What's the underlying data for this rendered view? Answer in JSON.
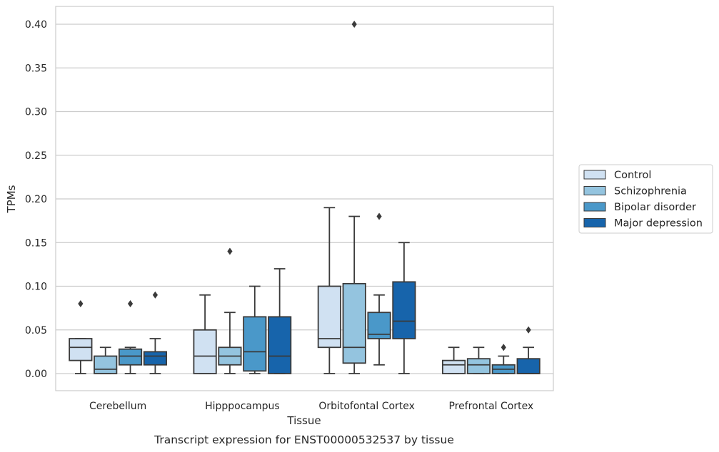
{
  "chart_data": {
    "type": "box",
    "caption": "Transcript expression for ENST00000532537 by tissue",
    "xlabel": "Tissue",
    "ylabel": "TPMs",
    "ylim": [
      -0.02,
      0.42
    ],
    "yticks": [
      "0.00",
      "0.05",
      "0.10",
      "0.15",
      "0.20",
      "0.25",
      "0.30",
      "0.35",
      "0.40"
    ],
    "grid": true,
    "legend_position": "right",
    "categories": [
      "Cerebellum",
      "Hipppocampus",
      "Orbitofontal Cortex",
      "Prefrontal Cortex"
    ],
    "series": [
      {
        "name": "Control",
        "color": "#d0e1f2",
        "boxes": [
          {
            "min": 0.0,
            "q1": 0.015,
            "median": 0.03,
            "q3": 0.04,
            "max": 0.04,
            "outliers": [
              0.08
            ]
          },
          {
            "min": 0.0,
            "q1": 0.0,
            "median": 0.02,
            "q3": 0.05,
            "max": 0.09,
            "outliers": []
          },
          {
            "min": 0.0,
            "q1": 0.03,
            "median": 0.04,
            "q3": 0.1,
            "max": 0.19,
            "outliers": []
          },
          {
            "min": 0.0,
            "q1": 0.0,
            "median": 0.01,
            "q3": 0.015,
            "max": 0.03,
            "outliers": []
          }
        ]
      },
      {
        "name": "Schizophrenia",
        "color": "#94c4df",
        "boxes": [
          {
            "min": 0.0,
            "q1": 0.0,
            "median": 0.005,
            "q3": 0.02,
            "max": 0.03,
            "outliers": []
          },
          {
            "min": 0.0,
            "q1": 0.01,
            "median": 0.02,
            "q3": 0.03,
            "max": 0.07,
            "outliers": [
              0.14
            ]
          },
          {
            "min": 0.0,
            "q1": 0.012,
            "median": 0.03,
            "q3": 0.103,
            "max": 0.18,
            "outliers": [
              0.4
            ]
          },
          {
            "min": 0.0,
            "q1": 0.0,
            "median": 0.01,
            "q3": 0.017,
            "max": 0.03,
            "outliers": []
          }
        ]
      },
      {
        "name": "Bipolar disorder",
        "color": "#4a98c9",
        "boxes": [
          {
            "min": 0.0,
            "q1": 0.01,
            "median": 0.02,
            "q3": 0.028,
            "max": 0.03,
            "outliers": [
              0.08
            ]
          },
          {
            "min": 0.0,
            "q1": 0.003,
            "median": 0.025,
            "q3": 0.065,
            "max": 0.1,
            "outliers": []
          },
          {
            "min": 0.01,
            "q1": 0.04,
            "median": 0.045,
            "q3": 0.07,
            "max": 0.09,
            "outliers": [
              0.18
            ]
          },
          {
            "min": 0.0,
            "q1": 0.0,
            "median": 0.005,
            "q3": 0.01,
            "max": 0.02,
            "outliers": [
              0.03
            ]
          }
        ]
      },
      {
        "name": "Major depression",
        "color": "#1764ab",
        "boxes": [
          {
            "min": 0.0,
            "q1": 0.01,
            "median": 0.02,
            "q3": 0.025,
            "max": 0.04,
            "outliers": [
              0.09
            ]
          },
          {
            "min": 0.0,
            "q1": 0.0,
            "median": 0.02,
            "q3": 0.065,
            "max": 0.12,
            "outliers": []
          },
          {
            "min": 0.0,
            "q1": 0.04,
            "median": 0.06,
            "q3": 0.105,
            "max": 0.15,
            "outliers": []
          },
          {
            "min": 0.0,
            "q1": 0.0,
            "median": 0.0,
            "q3": 0.017,
            "max": 0.03,
            "outliers": [
              0.05
            ]
          }
        ]
      }
    ]
  }
}
